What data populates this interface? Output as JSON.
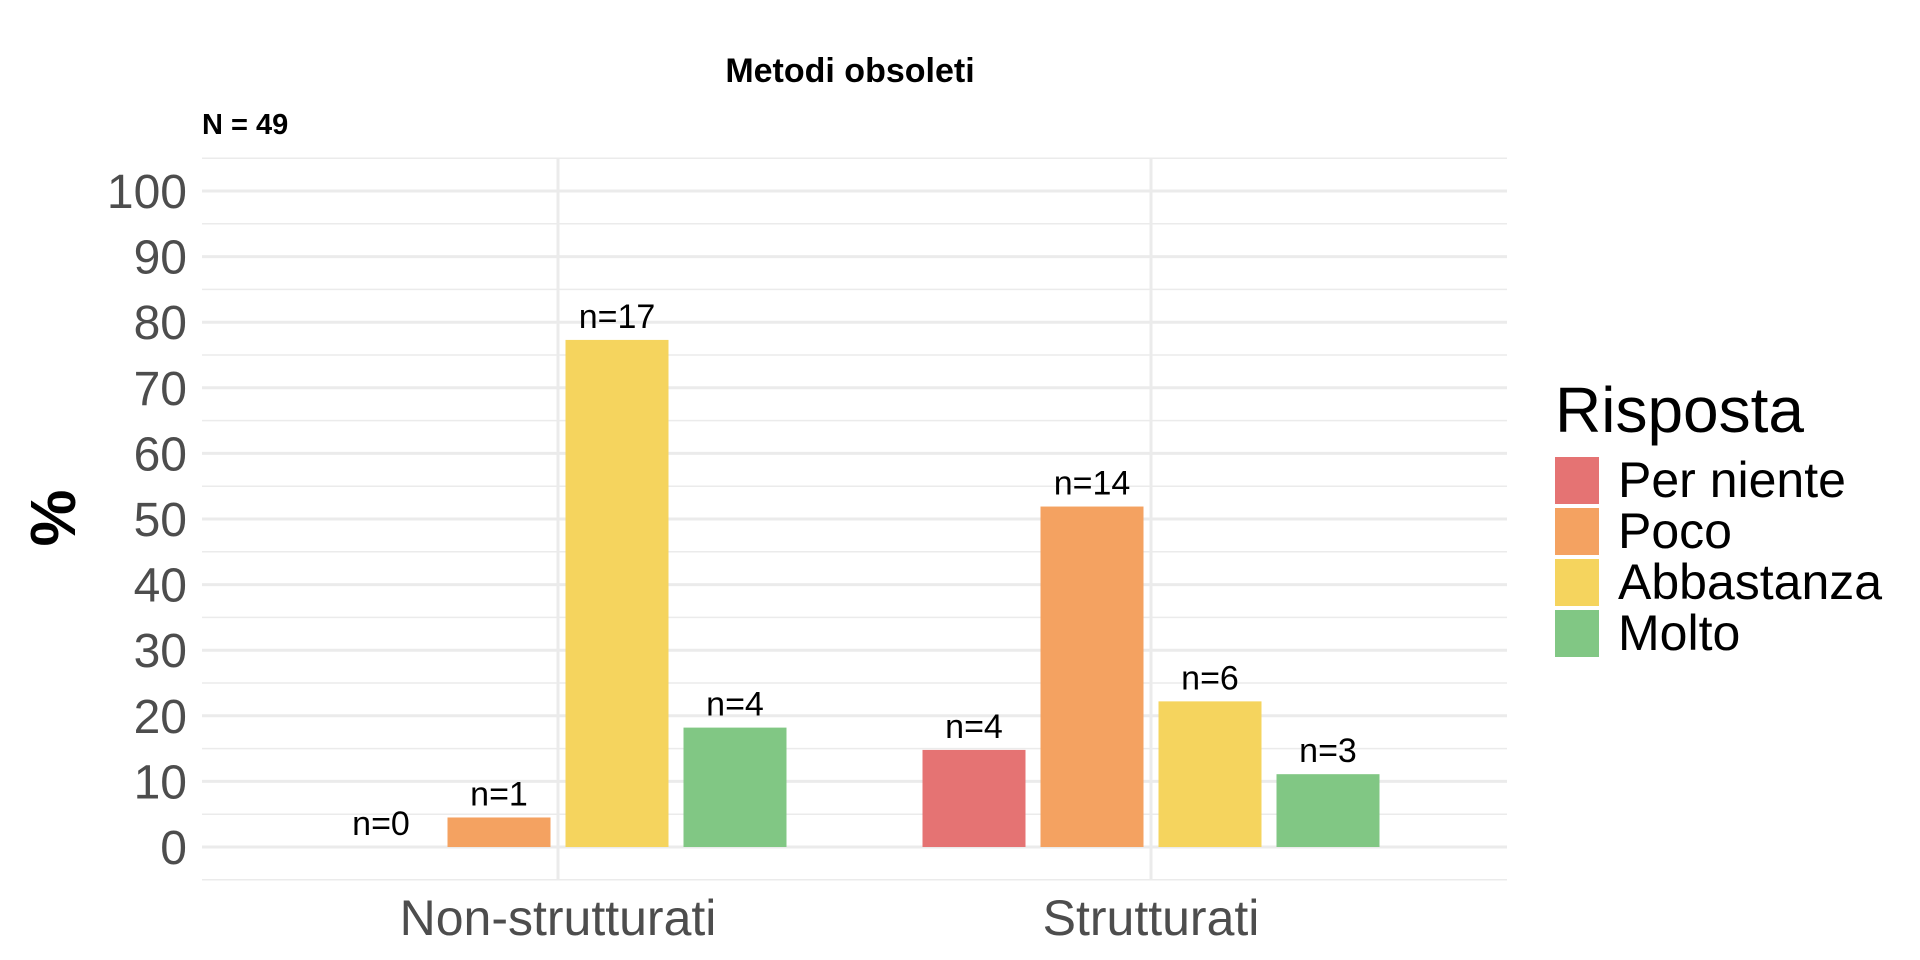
{
  "chart_data": {
    "type": "bar",
    "title": "Metodi obsoleti",
    "subtitle": "N = 49",
    "xlabel": "",
    "ylabel": "%",
    "ylim": [
      0,
      100
    ],
    "yticks": [
      "0",
      "10",
      "20",
      "30",
      "40",
      "50",
      "60",
      "70",
      "80",
      "90",
      "100"
    ],
    "categories": [
      "Non-strutturati",
      "Strutturati"
    ],
    "legend_title": "Risposta",
    "legend_position": "right",
    "grid": true,
    "series": [
      {
        "name": "Per niente",
        "color": "#e57373",
        "values": [
          0,
          14.8
        ],
        "labels": [
          "n=0",
          "n=4"
        ]
      },
      {
        "name": "Poco",
        "color": "#f4a261",
        "values": [
          4.5,
          51.9
        ],
        "labels": [
          "n=1",
          "n=14"
        ]
      },
      {
        "name": "Abbastanza",
        "color": "#f5d45e",
        "values": [
          77.3,
          22.2
        ],
        "labels": [
          "n=17",
          "n=6"
        ]
      },
      {
        "name": "Molto",
        "color": "#81c784",
        "values": [
          18.2,
          11.1
        ],
        "labels": [
          "n=4",
          "n=3"
        ]
      }
    ]
  }
}
